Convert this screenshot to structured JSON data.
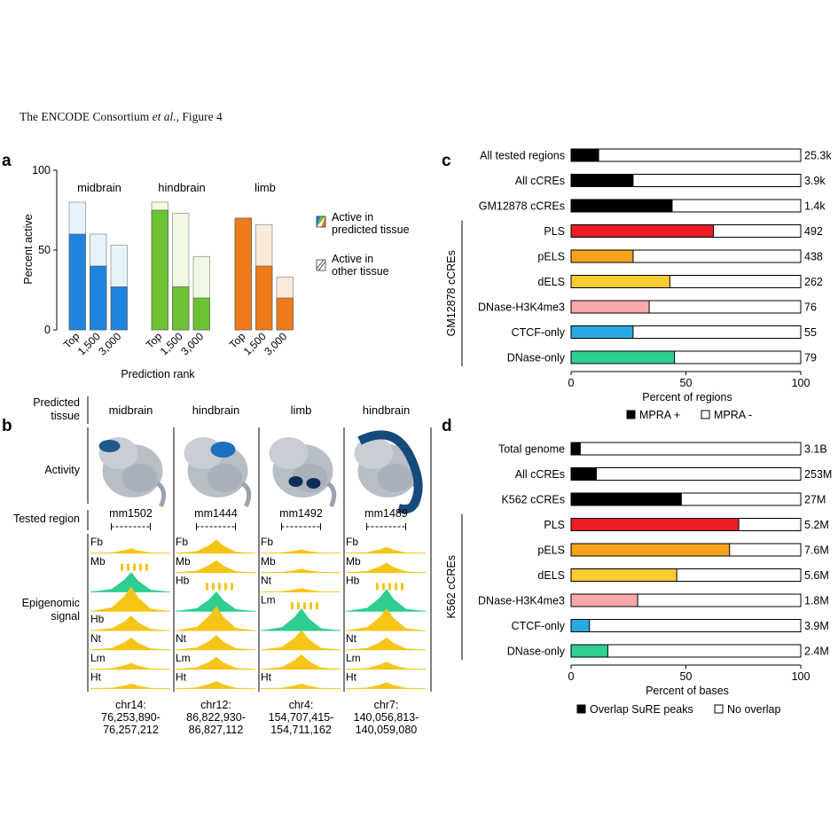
{
  "header": {
    "prefix": "The ENCODE Consortium ",
    "etal": "et al.,",
    "suffix": " Figure 4"
  },
  "panel_labels": {
    "a": "a",
    "b": "b",
    "c": "c",
    "d": "d"
  },
  "colors": {
    "blue": "#1f84de",
    "blue_light": "#e6f3fb",
    "green": "#6cc233",
    "green_light": "#eff9e3",
    "orange": "#ef7a1a",
    "orange_light": "#f8ebdc",
    "black": "#000000",
    "red": "#ee1c25",
    "amber": "#f7a21b",
    "gold": "#fbcb32",
    "pink": "#f9a9a9",
    "sky": "#29a9e1",
    "teal": "#2dce8f",
    "track_yellow": "#f5c518"
  },
  "panel_b": {
    "row_labels": {
      "predicted": [
        "Predicted",
        "tissue"
      ],
      "activity": "Activity",
      "tested": "Tested region",
      "epi": [
        "Epigenomic",
        "signal"
      ]
    },
    "columns": [
      {
        "tissue": "midbrain",
        "id": "mm1502",
        "coords": [
          "chr14:",
          "76,253,890-",
          "76,257,212"
        ],
        "tracks": [
          "Fb",
          "Mb",
          "",
          "",
          "Hb",
          "Nt",
          "Lm",
          "Ht"
        ]
      },
      {
        "tissue": "hindbrain",
        "id": "mm1444",
        "coords": [
          "chr12:",
          "86,822,930-",
          "86,827,112"
        ],
        "tracks": [
          "Fb",
          "Mb",
          "Hb",
          "",
          "",
          "Nt",
          "Lm",
          "Ht"
        ]
      },
      {
        "tissue": "limb",
        "id": "mm1492",
        "coords": [
          "chr4:",
          "154,707,415-",
          "154,711,162"
        ],
        "tracks": [
          "Fb",
          "Mb",
          "Nt",
          "Lm",
          "",
          "",
          "",
          "Ht"
        ]
      },
      {
        "tissue": "hindbrain",
        "id": "mm1489",
        "coords": [
          "chr7:",
          "140,056,813-",
          "140,059,080"
        ],
        "tracks": [
          "Fb",
          "Mb",
          "Hb",
          "",
          "",
          "Nt",
          "Lm",
          "Ht"
        ]
      }
    ]
  },
  "chart_data": [
    {
      "type": "bar",
      "panel": "a",
      "ylabel": "Percent active",
      "xlabel": "Prediction rank",
      "ylim": [
        0,
        100
      ],
      "yticks": [
        0,
        50,
        100
      ],
      "categories": [
        "Top",
        "1,500",
        "3,000"
      ],
      "groups": [
        {
          "name": "midbrain",
          "predicted": [
            60,
            40,
            27
          ],
          "total": [
            80,
            60,
            53
          ]
        },
        {
          "name": "hindbrain",
          "predicted": [
            75,
            27,
            20
          ],
          "total": [
            80,
            73,
            46
          ]
        },
        {
          "name": "limb",
          "predicted": [
            70,
            40,
            20
          ],
          "total": [
            70,
            66,
            33
          ]
        }
      ],
      "legend": [
        {
          "lines": [
            "Active in",
            "predicted tissue"
          ]
        },
        {
          "lines": [
            "Active in",
            "other tissue"
          ]
        }
      ]
    },
    {
      "type": "bar",
      "panel": "c",
      "orientation": "horizontal",
      "xlabel": "Percent of regions",
      "xlim": [
        0,
        100
      ],
      "xticks": [
        0,
        50,
        100
      ],
      "group_label": "GM12878 cCREs",
      "categories": [
        "All tested regions",
        "All cCREs",
        "GM12878 cCREs",
        "PLS",
        "pELS",
        "dELS",
        "DNase-H3K4me3",
        "CTCF-only",
        "DNase-only"
      ],
      "values": [
        12,
        27,
        44,
        62,
        27,
        43,
        34,
        27,
        45
      ],
      "counts": [
        "25.3k",
        "3.9k",
        "1.4k",
        "492",
        "438",
        "262",
        "76",
        "55",
        "79"
      ],
      "legend": [
        "MPRA +",
        "MPRA -"
      ]
    },
    {
      "type": "bar",
      "panel": "d",
      "orientation": "horizontal",
      "xlabel": "Percent of bases",
      "xlim": [
        0,
        100
      ],
      "xticks": [
        0,
        50,
        100
      ],
      "group_label": "K562 cCREs",
      "categories": [
        "Total genome",
        "All cCREs",
        "K562 cCREs",
        "PLS",
        "pELS",
        "dELS",
        "DNase-H3K4me3",
        "CTCF-only",
        "DNase-only"
      ],
      "values": [
        4,
        11,
        48,
        73,
        69,
        46,
        29,
        8,
        16
      ],
      "counts": [
        "3.1B",
        "253M",
        "27M",
        "5.2M",
        "7.6M",
        "5.6M",
        "1.8M",
        "3.9M",
        "2.4M"
      ],
      "legend": [
        "Overlap SuRE peaks",
        "No overlap"
      ]
    }
  ]
}
